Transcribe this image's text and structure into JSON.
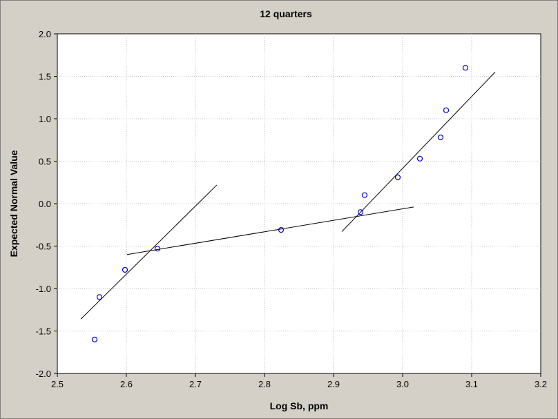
{
  "chart_data": {
    "type": "scatter",
    "title": "12 quarters",
    "xlabel": "Log Sb, ppm",
    "ylabel": "Expected Normal Value",
    "xlim": [
      2.5,
      3.2
    ],
    "ylim": [
      -2.0,
      2.0
    ],
    "xticks": [
      "2.5",
      "2.6",
      "2.7",
      "2.8",
      "2.9",
      "3.0",
      "3.1",
      "3.2"
    ],
    "yticks": [
      "2.0",
      "1.5",
      "1.0",
      "0.5",
      "0.0",
      "-0.5",
      "-1.0",
      "-1.5",
      "-2.0"
    ],
    "grid": true,
    "points": [
      {
        "x": 2.554,
        "y": -1.6
      },
      {
        "x": 2.561,
        "y": -1.1
      },
      {
        "x": 2.598,
        "y": -0.78
      },
      {
        "x": 2.645,
        "y": -0.53
      },
      {
        "x": 2.824,
        "y": -0.31
      },
      {
        "x": 2.939,
        "y": -0.1
      },
      {
        "x": 2.945,
        "y": 0.1
      },
      {
        "x": 2.993,
        "y": 0.31
      },
      {
        "x": 3.025,
        "y": 0.53
      },
      {
        "x": 3.055,
        "y": 0.78
      },
      {
        "x": 3.063,
        "y": 1.1
      },
      {
        "x": 3.091,
        "y": 1.6
      }
    ],
    "fit_lines": [
      {
        "x": [
          2.534,
          2.731
        ],
        "y": [
          -1.36,
          0.22
        ]
      },
      {
        "x": [
          2.601,
          3.016
        ],
        "y": [
          -0.6,
          -0.04
        ]
      },
      {
        "x": [
          2.912,
          3.134
        ],
        "y": [
          -0.33,
          1.55
        ]
      }
    ],
    "colors": {
      "background": "#d4d0c8",
      "plot_area": "#ffffff",
      "marker": "#0000c0",
      "line": "#000000",
      "grid": "#c0c0c0"
    }
  }
}
